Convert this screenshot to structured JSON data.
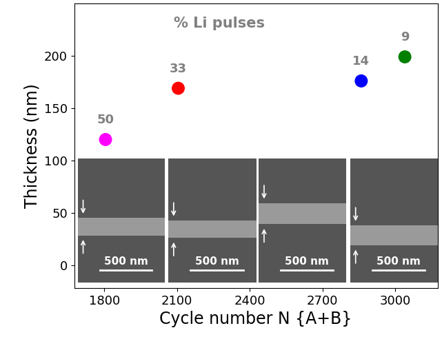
{
  "chart_data": {
    "type": "scatter",
    "x_label": "Cycle number N {A+B}",
    "y_label": "Thickness (nm)",
    "annotations": [
      {
        "text": "% Li pulses"
      }
    ],
    "x": [
      1805,
      2105,
      2860,
      3040
    ],
    "values": [
      120,
      169,
      176,
      199
    ],
    "li_pulse_percent": [
      50,
      33,
      14,
      9
    ],
    "colors": [
      "#ff00ff",
      "#ff0000",
      "#0000ff",
      "#008000"
    ],
    "marker": "circle",
    "inset_scale_labels": [
      "500 nm",
      "500 nm",
      "500 nm",
      "500 nm"
    ],
    "xlim": [
      1676,
      3175
    ],
    "xticks": [
      1800,
      2100,
      2400,
      2700,
      3000
    ],
    "ylim": [
      -22,
      250
    ],
    "yticks": [
      0,
      50,
      100,
      150,
      200
    ],
    "grid": false
  }
}
